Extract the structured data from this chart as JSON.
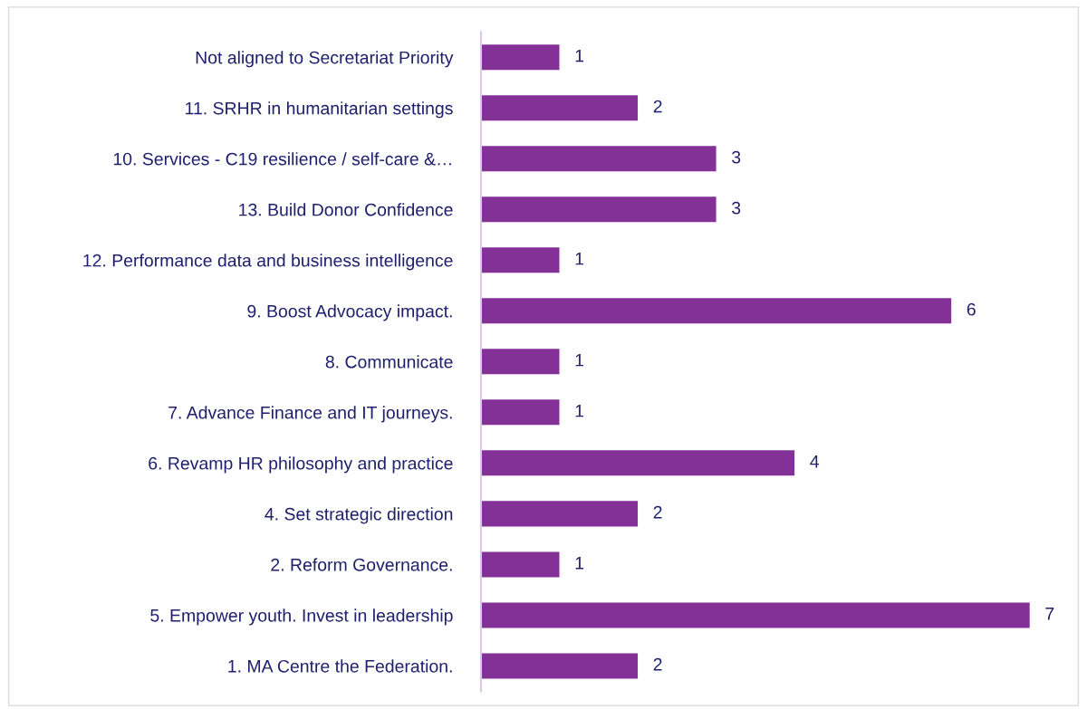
{
  "chart_data": {
    "type": "bar",
    "orientation": "horizontal",
    "categories": [
      "Not aligned to Secretariat Priority",
      "11. SRHR in humanitarian settings",
      "10. Services - C19 resilience / self-care &…",
      "13. Build Donor Confidence",
      "12. Performance data and business intelligence",
      "9. Boost Advocacy impact.",
      "8. Communicate",
      "7. Advance Finance and IT journeys.",
      "6. Revamp HR philosophy and practice",
      "4. Set strategic direction",
      "2. Reform Governance.",
      "5. Empower youth. Invest in leadership",
      "1. MA Centre the Federation."
    ],
    "values": [
      1,
      2,
      3,
      3,
      1,
      6,
      1,
      1,
      4,
      2,
      1,
      7,
      2
    ],
    "color": "#833197",
    "data_labels": true,
    "tick_labels": "y",
    "grid": false,
    "legend": false
  }
}
